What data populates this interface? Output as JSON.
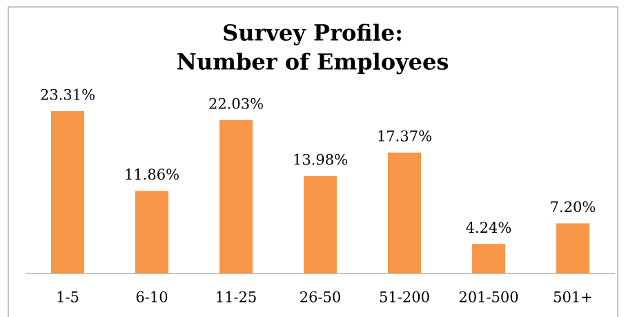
{
  "chart_data": {
    "type": "bar",
    "title": [
      "Survey Profile:",
      "Number of Employees"
    ],
    "categories": [
      "1-5",
      "6-10",
      "11-25",
      "26-50",
      "51-200",
      "201-500",
      "501+"
    ],
    "values": [
      23.31,
      11.86,
      22.03,
      13.98,
      17.37,
      4.24,
      7.2
    ],
    "value_labels": [
      "23.31%",
      "11.86%",
      "22.03%",
      "13.98%",
      "17.37%",
      "4.24%",
      "7.20%"
    ],
    "color": "#f79646"
  }
}
